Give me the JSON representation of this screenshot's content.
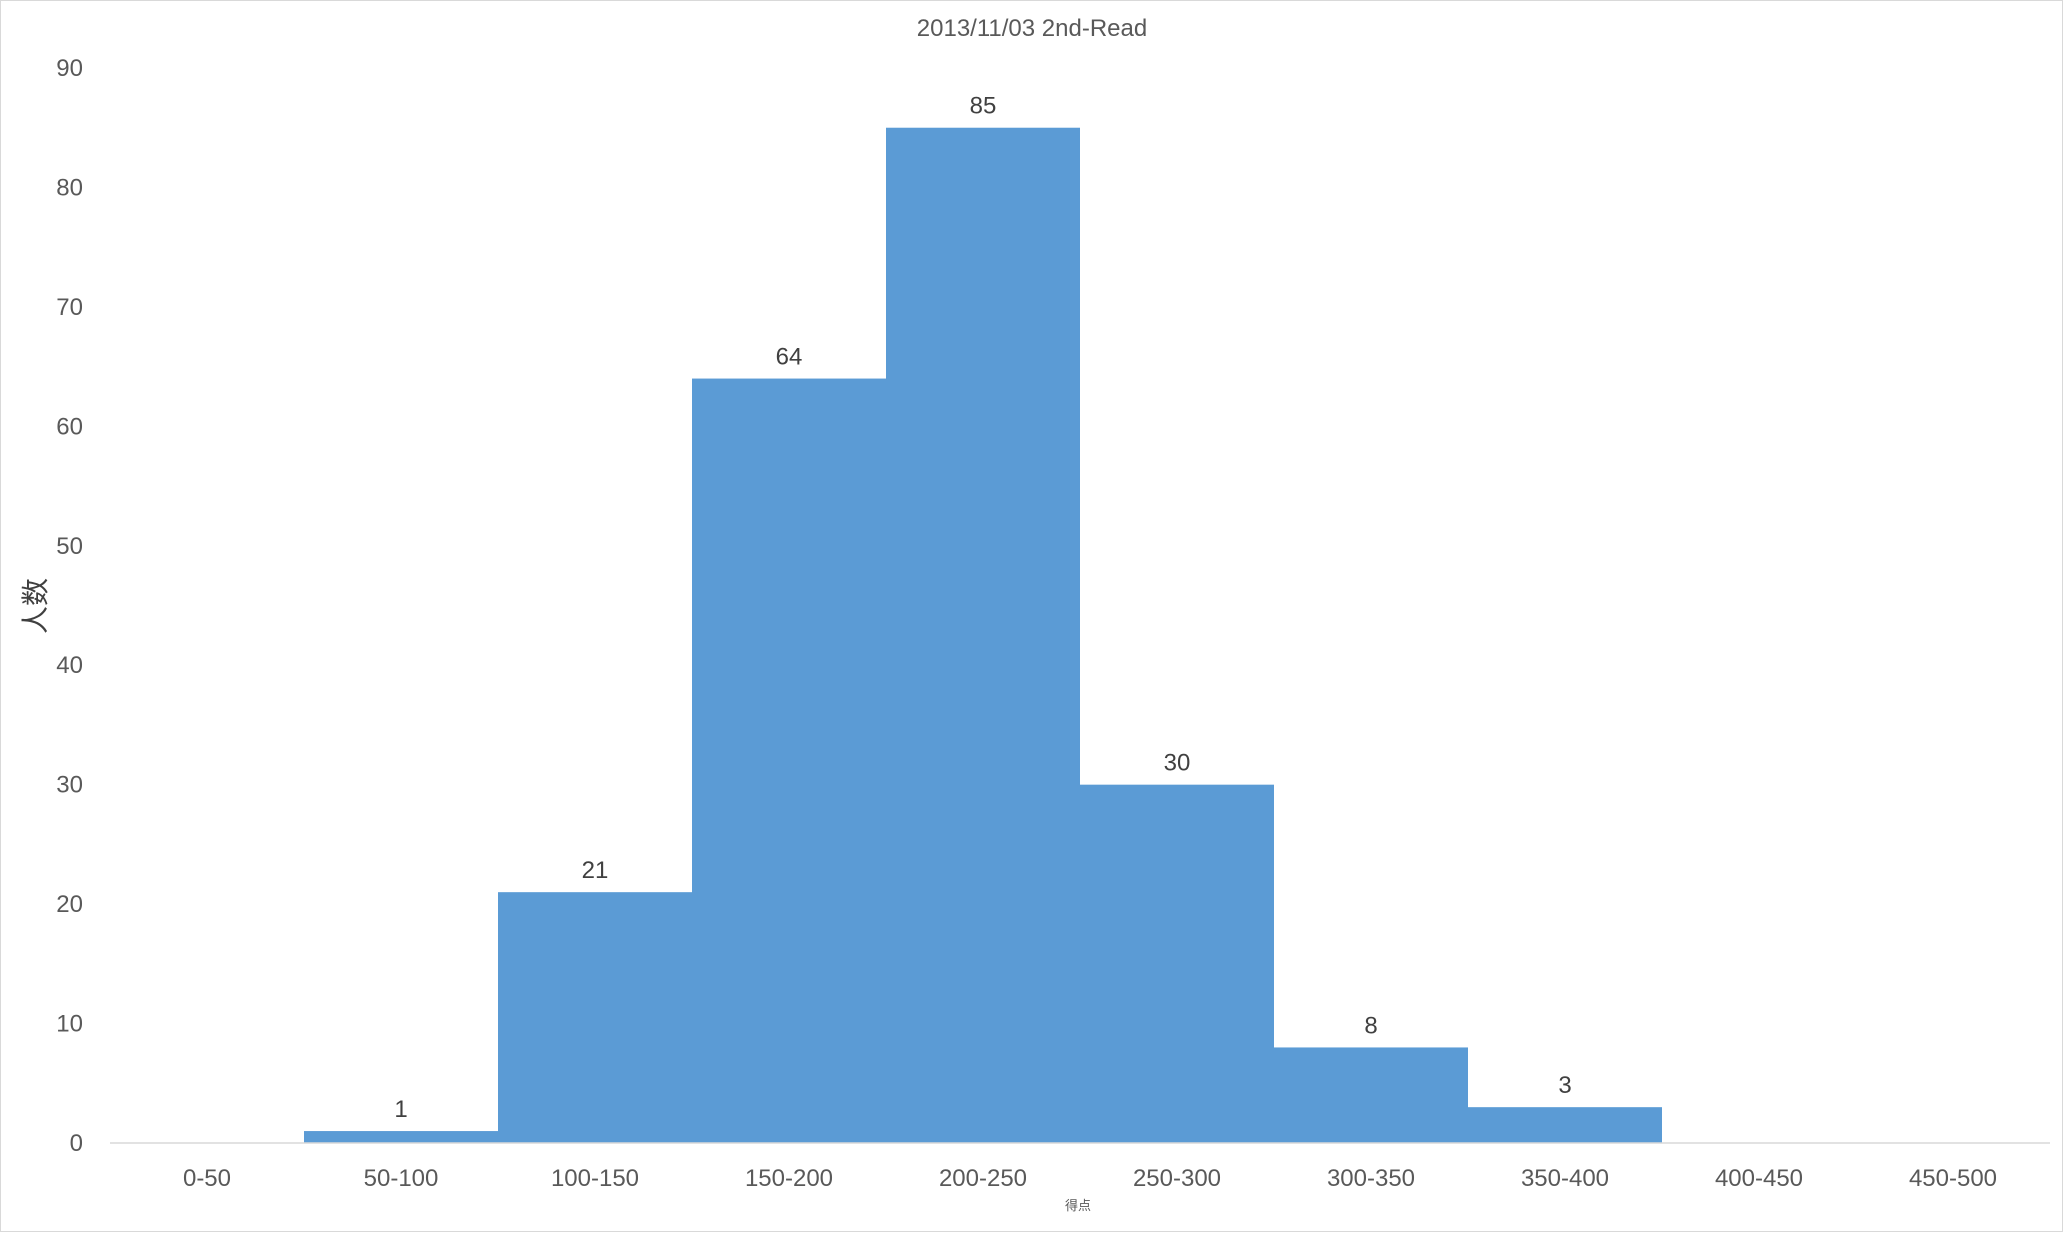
{
  "chart_data": {
    "type": "bar",
    "title": "2013/11/03 2nd-Read",
    "xlabel": "得点",
    "ylabel": "人数",
    "categories": [
      "0-50",
      "50-100",
      "100-150",
      "150-200",
      "200-250",
      "250-300",
      "300-350",
      "350-400",
      "400-450",
      "450-500"
    ],
    "values": [
      0,
      1,
      21,
      64,
      85,
      30,
      8,
      3,
      0,
      0
    ],
    "data_labels": [
      "",
      "1",
      "21",
      "64",
      "85",
      "30",
      "8",
      "3",
      "",
      ""
    ],
    "ylim": [
      0,
      90
    ],
    "yticks": [
      "0",
      "10",
      "20",
      "30",
      "40",
      "50",
      "60",
      "70",
      "80",
      "90"
    ],
    "grid": false,
    "legend": "none",
    "bar_color": "#5b9bd5",
    "gap_width": 0
  }
}
